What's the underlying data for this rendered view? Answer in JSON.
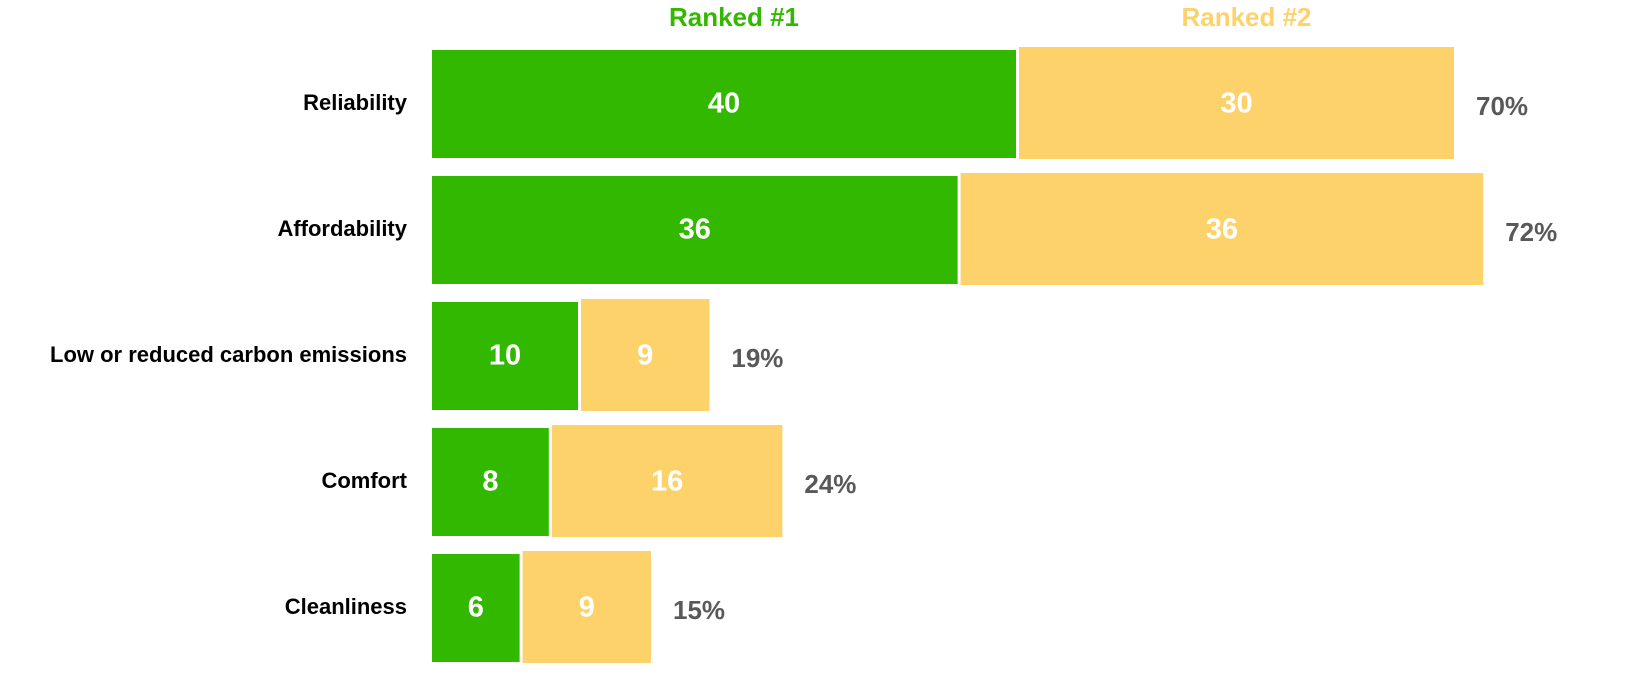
{
  "chart_data": {
    "type": "stacked-bar",
    "categories": [
      "Reliability",
      "Affordability",
      "Low or reduced carbon emissions",
      "Comfort",
      "Cleanliness"
    ],
    "series": [
      {
        "name": "Ranked #1",
        "color": "#33b800",
        "values": [
          40,
          36,
          10,
          8,
          6
        ]
      },
      {
        "name": "Ranked #2",
        "color": "#fdd26b",
        "values": [
          30,
          36,
          9,
          16,
          9
        ]
      }
    ],
    "total_labels": [
      "70%",
      "72%",
      "19%",
      "24%",
      "15%"
    ]
  }
}
